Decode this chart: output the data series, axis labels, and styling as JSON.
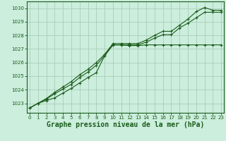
{
  "background_color": "#cceedd",
  "grid_color": "#aaccbb",
  "line_color": "#1a5c1a",
  "xlabel": "Graphe pression niveau de la mer (hPa)",
  "xlabel_fontsize": 7.0,
  "ylim": [
    1022.3,
    1030.5
  ],
  "xlim": [
    -0.3,
    23.3
  ],
  "yticks": [
    1023,
    1024,
    1025,
    1026,
    1027,
    1028,
    1029,
    1030
  ],
  "xticks": [
    0,
    1,
    2,
    3,
    4,
    5,
    6,
    7,
    8,
    9,
    10,
    11,
    12,
    13,
    14,
    15,
    16,
    17,
    18,
    19,
    20,
    21,
    22,
    23
  ],
  "series1": [
    1022.65,
    1023.0,
    1023.2,
    1023.4,
    1023.75,
    1024.1,
    1024.5,
    1024.9,
    1025.25,
    1026.5,
    1027.3,
    1027.3,
    1027.25,
    1027.25,
    1027.3,
    1027.3,
    1027.3,
    1027.3,
    1027.3,
    1027.3,
    1027.3,
    1027.3,
    1027.3,
    1027.3
  ],
  "series2": [
    1022.65,
    1023.0,
    1023.3,
    1023.7,
    1024.05,
    1024.4,
    1024.9,
    1025.3,
    1025.8,
    1026.5,
    1027.3,
    1027.3,
    1027.3,
    1027.3,
    1027.5,
    1027.8,
    1028.05,
    1028.05,
    1028.55,
    1028.9,
    1029.3,
    1029.7,
    1029.7,
    1029.7
  ],
  "series3": [
    1022.65,
    1023.0,
    1023.35,
    1023.8,
    1024.2,
    1024.6,
    1025.1,
    1025.5,
    1026.0,
    1026.6,
    1027.4,
    1027.4,
    1027.4,
    1027.4,
    1027.65,
    1028.0,
    1028.3,
    1028.3,
    1028.75,
    1029.2,
    1029.75,
    1030.05,
    1029.85,
    1029.85
  ]
}
